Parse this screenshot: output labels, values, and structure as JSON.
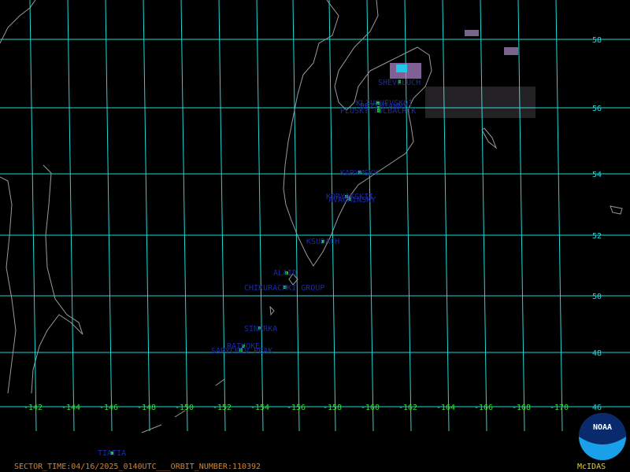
{
  "map": {
    "latitude_labels": [
      58,
      56,
      54,
      52,
      50,
      48,
      46
    ],
    "longitude_labels": [
      -142,
      -144,
      -146,
      -148,
      -150,
      -152,
      -154,
      -156,
      -158,
      -160,
      -162,
      -164,
      -166,
      -168,
      -170
    ],
    "volcanoes": [
      "SHEVELUCH",
      "KLIUCHEVSKOI",
      "BEZYMIANNY",
      "PLOSKY TOLBACHIK",
      "KARYMSKY",
      "KORYAKSKII",
      "AVACHINSKY",
      "KSUDACH",
      "ALAID",
      "CHIKURACHKI GROUP",
      "SINARKA",
      "RAIKOKE",
      "SARYCHEV PEAK",
      "TIATIA"
    ],
    "footer": {
      "sector_info": "SECTOR_TIME:04/16/2025_0140UTC___ORBIT_NUMBER:110392",
      "source": "McIDAS"
    }
  }
}
